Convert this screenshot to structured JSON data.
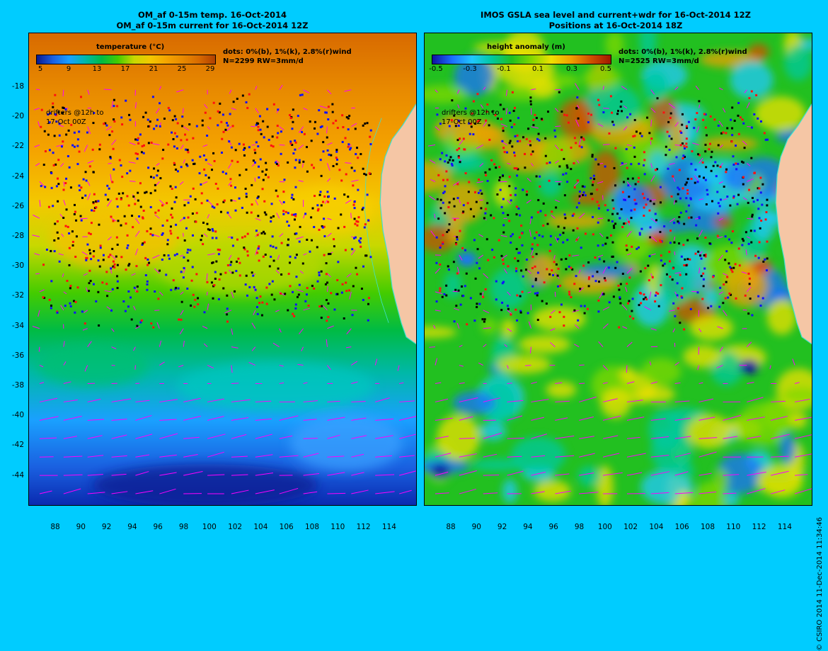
{
  "left_panel": {
    "title_line1": "OM_af 0-15m temp. 16-Oct-2014",
    "title_line2": "OM_af 0-15m current for 16-Oct-2014 12Z",
    "colorbar_title": "temperature (°C)",
    "colorbar_ticks": [
      "5",
      "9",
      "13",
      "17",
      "21",
      "25",
      "29"
    ],
    "dots_note_line1": "dots: 0%(b), 1%(k), 2.8%(r)wind",
    "dots_note_line2": "N=2299 RW=3mm/d",
    "drifter_note_line1": "drifters @12h to",
    "drifter_note_line2": "17-Oct 00Z"
  },
  "right_panel": {
    "title_line1": "IMOS GSLA sea level and current+wdr for 16-Oct-2014 12Z",
    "title_line2": "Positions at 16-Oct-2014 18Z",
    "colorbar_title": "height anomaly (m)",
    "colorbar_ticks": [
      "-0.5",
      "-0.3",
      "-0.1",
      "0.1",
      "0.3",
      "0.5"
    ],
    "dots_note_line1": "dots: 0%(b), 1%(k), 2.8%(r)wind",
    "dots_note_line2": "N=2525 RW=3mm/d",
    "drifter_note_line1": "drifters @12h to",
    "drifter_note_line2": "17-Oct 00Z"
  },
  "y_axis_labels": [
    "-18",
    "-20",
    "-22",
    "-24",
    "-26",
    "-28",
    "-30",
    "-32",
    "-34",
    "-36",
    "-38",
    "-40",
    "-42",
    "-44"
  ],
  "x_axis_labels": [
    "88",
    "90",
    "92",
    "94",
    "96",
    "98",
    "100",
    "102",
    "104",
    "106",
    "108",
    "110",
    "112",
    "114"
  ],
  "credit": "© CSIRO 2014   11-Dec-2014 11:34:46",
  "colors": {
    "background": "#00ccff",
    "land": "#f5c6a5",
    "coast": "#40e0d0",
    "current_arrows": "#ff00ff"
  }
}
